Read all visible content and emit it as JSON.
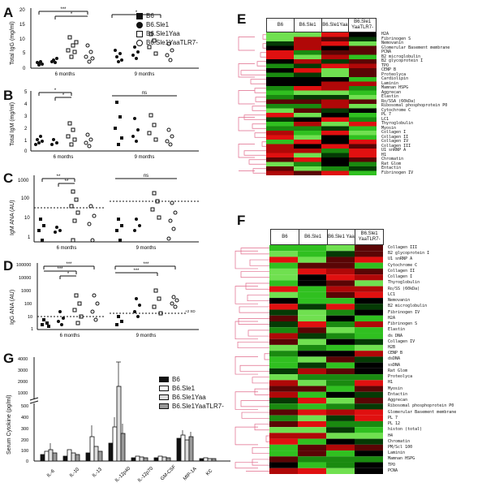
{
  "panels": {
    "A": {
      "letter": "A",
      "ylabel": "Total IgG (mg/ml)",
      "ticks": [
        "20",
        "15",
        "10",
        "5",
        "0"
      ],
      "groups": [
        "6 months",
        "9 months"
      ],
      "sig": [
        "***",
        "*",
        "*"
      ]
    },
    "B": {
      "letter": "B",
      "ylabel": "Total IgM (mg/ml)",
      "ticks": [
        "5",
        "4",
        "3",
        "2",
        "1",
        "0"
      ],
      "groups": [
        "6 months",
        "9 months"
      ],
      "sig": [
        "*",
        "*",
        "ns"
      ]
    },
    "C": {
      "letter": "C",
      "ylabel": "IgM ANA (AU)",
      "ticks": [
        "1000",
        "100",
        "10",
        "1"
      ],
      "groups": [
        "6 months",
        "9 months"
      ],
      "sig": [
        "**",
        "**",
        "ns"
      ]
    },
    "D": {
      "letter": "D",
      "ylabel": "IgG ANA (AU)",
      "ticks": [
        "100000",
        "10000",
        "1000",
        "100",
        "10",
        "1"
      ],
      "groups": [
        "6 months",
        "9 months"
      ],
      "sig": [
        "***",
        "***",
        "*",
        "***",
        "***"
      ],
      "annotation": "+2 SD"
    },
    "G": {
      "letter": "G",
      "ylabel": "Serum Cytokine (pg/ml)",
      "ticks": [
        "4000",
        "3000",
        "2000",
        "1000",
        "500",
        "400",
        "300",
        "200",
        "100",
        "0"
      ],
      "categories": [
        "IL-6",
        "IL-10",
        "IL-13",
        "IL-12p40",
        "IL-12p70",
        "GM-CSF",
        "MIP-1A",
        "KC"
      ],
      "legend": [
        "B6",
        "B6.Sle1",
        "B6.Sle1Yaa",
        "B6.Sle1YaaTLR7-"
      ]
    },
    "E": {
      "letter": "E"
    },
    "F": {
      "letter": "F"
    }
  },
  "legend_main": [
    "B6",
    "B6.Sle1",
    "B6.Sle1Yaa",
    "B6.Sle1YaaTLR7-"
  ],
  "heatmap_E": {
    "columns": [
      "B6",
      "B6.Sle1",
      "B6.Sle1Yaa",
      "B6.Sle1 YaaTLR7-"
    ],
    "rows": [
      "H2A",
      "Fibrinogen S",
      "Nemovanin",
      "Glomerular Basement membrane",
      "PCNA",
      "B2 microglobulin",
      "B2 glycoprotein I",
      "TPO",
      "CENP B",
      "Proteolyca",
      "Cardiolipin",
      "Laminin",
      "Mamnan HSPG",
      "Aggrecan",
      "Elastin",
      "Ro/SSA (60kDa)",
      "Ribosomal phosphoprotein P0",
      "Cytochrome C",
      "PL 7",
      "LC1",
      "Thyroglobulin",
      "Myosin",
      "Collagen I",
      "Collagen II",
      "Collagen IV",
      "Collagen III",
      "U1 snRNP A",
      "H1",
      "Chromatin",
      "Rat Glom",
      "Entactin",
      "Fibrinogen IV"
    ]
  },
  "heatmap_F": {
    "columns": [
      "B6",
      "B6.Sle1",
      "B6.Sle1 Yaa",
      "B6.Sle1 YaaTLR7-"
    ],
    "rows": [
      "Collagen III",
      "B2 glycoprotein I",
      "U1 snRNP A",
      "Cytochrome C",
      "Collagen II",
      "Collagen I",
      "Thyroglobulin",
      "Ro/SS (60kDa)",
      "LC1",
      "Nemovanin",
      "B2 microglobulin",
      "Fibrinogen IV",
      "H2A",
      "Fibrinogen S",
      "Elastin",
      "ds DNA",
      "Collagen IV",
      "H2B",
      "CENP B",
      "dsDNA",
      "ssDNA",
      "Rat Glom",
      "Proteolyca",
      "H1",
      "Myosin",
      "Entactin",
      "Aggrecan",
      "Ribosomal phosphoprotein P0",
      "Glomerular Basement membrane",
      "PL 7",
      "PL 12",
      "histon (total)",
      "H4",
      "Chromatin",
      "PM/Scl 100",
      "Laminin",
      "Mamnan HSPG",
      "TPO",
      "PCNA"
    ]
  },
  "colors": {
    "red": "#e01010",
    "green": "#30c020",
    "black": "#000000",
    "tree": "#e06a8a"
  }
}
